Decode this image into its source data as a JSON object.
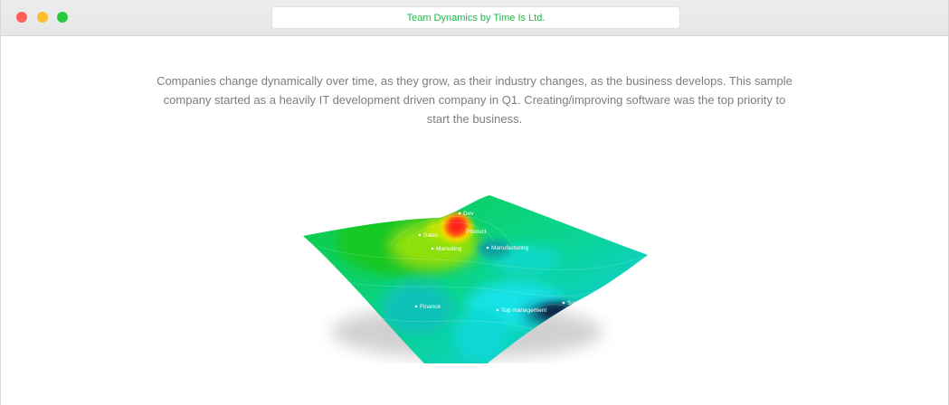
{
  "window": {
    "address_bar": "Team Dynamics by Time Is Ltd."
  },
  "intro": {
    "text": "Companies change dynamically over time, as they grow, as their industry changes, as the business develops. This sample company started as a heavily IT development driven company in Q1. Creating/improving software was the top priority to start the business."
  },
  "surface_map": {
    "labels": [
      {
        "name": "dev",
        "text": "Dev"
      },
      {
        "name": "product",
        "text": "Product"
      },
      {
        "name": "sales",
        "text": "Sales"
      },
      {
        "name": "marketing",
        "text": "Marketing"
      },
      {
        "name": "manufacturing",
        "text": "Manufacturing"
      },
      {
        "name": "finance",
        "text": "Finance"
      },
      {
        "name": "top-management",
        "text": "Top management"
      },
      {
        "name": "support",
        "text": "Support"
      }
    ],
    "colors": {
      "low": "#0b2a4a",
      "mid_low": "#0fd8e0",
      "mid": "#0acb52",
      "mid_high": "#c8e800",
      "high": "#ff1a1a"
    }
  }
}
